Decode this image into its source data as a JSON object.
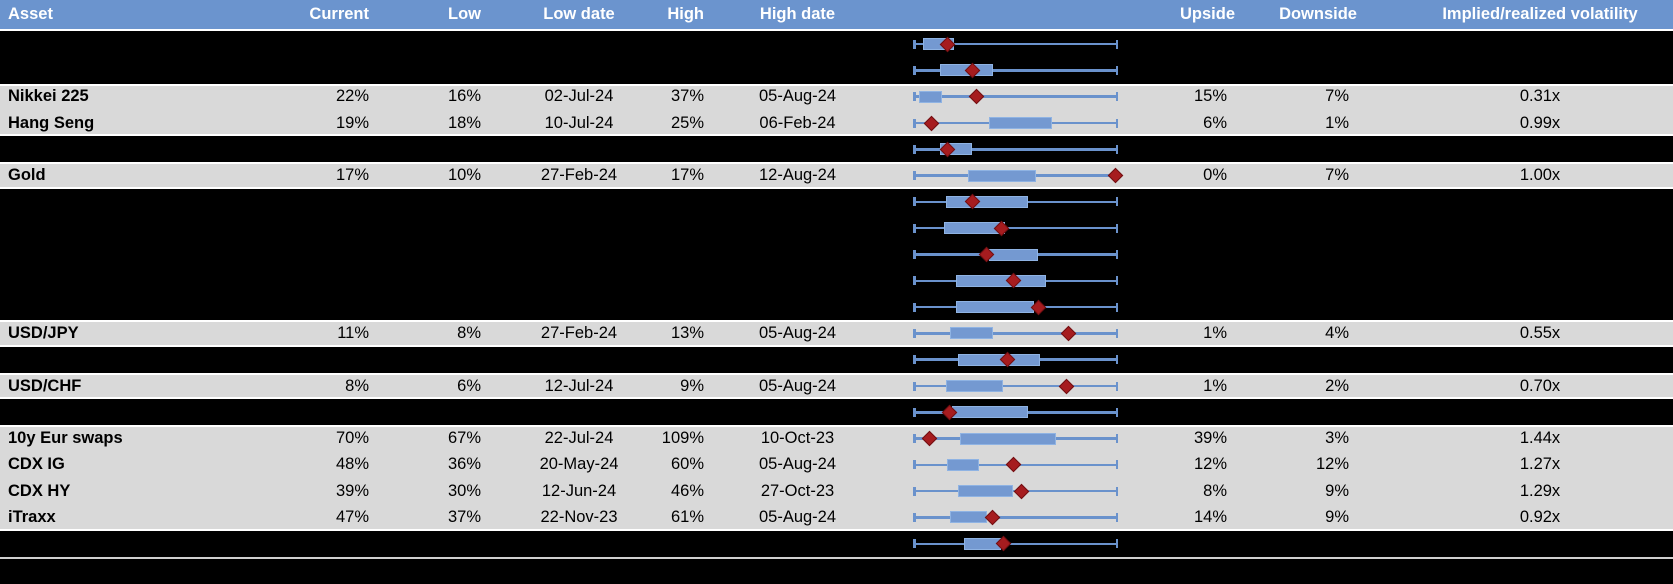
{
  "header": {
    "columns": [
      {
        "id": "asset",
        "label": "Asset"
      },
      {
        "id": "current",
        "label": "Current"
      },
      {
        "id": "low",
        "label": "Low"
      },
      {
        "id": "low_date",
        "label": "Low date"
      },
      {
        "id": "high",
        "label": "High"
      },
      {
        "id": "high_date",
        "label": "High date"
      },
      {
        "id": "range_chart",
        "label": ""
      },
      {
        "id": "upside",
        "label": "Upside"
      },
      {
        "id": "downside",
        "label": "Downside"
      },
      {
        "id": "implied_realized",
        "label": "Implied/realized volatility"
      }
    ]
  },
  "colors": {
    "header_bg": "#6b94ce",
    "header_text": "#ffffff",
    "row_bg": "#d9d9d9",
    "hidden_row_bg": "#000000",
    "separator": "#ffffff",
    "whisker": "#6a92cc",
    "box_fill": "#7499d1",
    "box_border": "#8fb3e3",
    "marker_fill": "#a61c1f",
    "marker_border": "#700f12",
    "bottom_line": "#cfcfcf",
    "text": "#000000"
  },
  "chart_data": {
    "type": "table",
    "note": "Implied volatility table with in-row box-and-whisker charts. Whiskers span the low-to-high range (fraction 0 to 1); box_left/box_right give the blue box extent and marker the red diamond (current level) as fractions of that range. Rows with hidden=true are blacked-out rows where only the box plot is visible.",
    "rows": [
      {
        "hidden": true,
        "boxplot": {
          "box_left": 0.05,
          "box_right": 0.2,
          "marker": 0.17
        }
      },
      {
        "hidden": true,
        "boxplot": {
          "box_left": 0.13,
          "box_right": 0.39,
          "marker": 0.29
        }
      },
      {
        "hidden": false,
        "asset": "Nikkei 225",
        "current": "22%",
        "low": "16%",
        "low_date": "02-Jul-24",
        "high": "37%",
        "high_date": "05-Aug-24",
        "upside": "15%",
        "downside": "7%",
        "implied_realized": "0.31x",
        "boxplot": {
          "box_left": 0.03,
          "box_right": 0.14,
          "marker": 0.31
        }
      },
      {
        "hidden": false,
        "asset": "Hang Seng",
        "current": "19%",
        "low": "18%",
        "low_date": "10-Jul-24",
        "high": "25%",
        "high_date": "06-Feb-24",
        "upside": "6%",
        "downside": "1%",
        "implied_realized": "0.99x",
        "boxplot": {
          "box_left": 0.37,
          "box_right": 0.68,
          "marker": 0.09
        }
      },
      {
        "hidden": true,
        "boxplot": {
          "box_left": 0.13,
          "box_right": 0.29,
          "marker": 0.17
        }
      },
      {
        "hidden": false,
        "asset": "Gold",
        "current": "17%",
        "low": "10%",
        "low_date": "27-Feb-24",
        "high": "17%",
        "high_date": "12-Aug-24",
        "upside": "0%",
        "downside": "7%",
        "implied_realized": "1.00x",
        "boxplot": {
          "box_left": 0.27,
          "box_right": 0.6,
          "marker": 0.99
        }
      },
      {
        "hidden": true,
        "boxplot": {
          "box_left": 0.16,
          "box_right": 0.56,
          "marker": 0.29
        }
      },
      {
        "hidden": true,
        "boxplot": {
          "box_left": 0.15,
          "box_right": 0.45,
          "marker": 0.43
        }
      },
      {
        "hidden": true,
        "boxplot": {
          "box_left": 0.37,
          "box_right": 0.61,
          "marker": 0.36
        }
      },
      {
        "hidden": true,
        "boxplot": {
          "box_left": 0.21,
          "box_right": 0.65,
          "marker": 0.49
        }
      },
      {
        "hidden": true,
        "boxplot": {
          "box_left": 0.21,
          "box_right": 0.59,
          "marker": 0.61
        }
      },
      {
        "hidden": false,
        "asset": "USD/JPY",
        "current": "11%",
        "low": "8%",
        "low_date": "27-Feb-24",
        "high": "13%",
        "high_date": "05-Aug-24",
        "upside": "1%",
        "downside": "4%",
        "implied_realized": "0.55x",
        "boxplot": {
          "box_left": 0.18,
          "box_right": 0.39,
          "marker": 0.76
        }
      },
      {
        "hidden": true,
        "boxplot": {
          "box_left": 0.22,
          "box_right": 0.62,
          "marker": 0.46
        }
      },
      {
        "hidden": false,
        "asset": "USD/CHF",
        "current": "8%",
        "low": "6%",
        "low_date": "12-Jul-24",
        "high": "9%",
        "high_date": "05-Aug-24",
        "upside": "1%",
        "downside": "2%",
        "implied_realized": "0.70x",
        "boxplot": {
          "box_left": 0.16,
          "box_right": 0.44,
          "marker": 0.75
        }
      },
      {
        "hidden": true,
        "boxplot": {
          "box_left": 0.19,
          "box_right": 0.56,
          "marker": 0.18
        }
      },
      {
        "hidden": false,
        "asset": "10y Eur swaps",
        "current": "70%",
        "low": "67%",
        "low_date": "22-Jul-24",
        "high": "109%",
        "high_date": "10-Oct-23",
        "upside": "39%",
        "downside": "3%",
        "implied_realized": "1.44x",
        "boxplot": {
          "box_left": 0.23,
          "box_right": 0.7,
          "marker": 0.08
        }
      },
      {
        "hidden": false,
        "asset": "CDX IG",
        "current": "48%",
        "low": "36%",
        "low_date": "20-May-24",
        "high": "60%",
        "high_date": "05-Aug-24",
        "upside": "12%",
        "downside": "12%",
        "implied_realized": "1.27x",
        "boxplot": {
          "box_left": 0.165,
          "box_right": 0.32,
          "marker": 0.49
        }
      },
      {
        "hidden": false,
        "asset": "CDX HY",
        "current": "39%",
        "low": "30%",
        "low_date": "12-Jun-24",
        "high": "46%",
        "high_date": "27-Oct-23",
        "upside": "8%",
        "downside": "9%",
        "implied_realized": "1.29x",
        "boxplot": {
          "box_left": 0.22,
          "box_right": 0.49,
          "marker": 0.53
        }
      },
      {
        "hidden": false,
        "asset": "iTraxx",
        "current": "47%",
        "low": "37%",
        "low_date": "22-Nov-23",
        "high": "61%",
        "high_date": "05-Aug-24",
        "upside": "14%",
        "downside": "9%",
        "implied_realized": "0.92x",
        "boxplot": {
          "box_left": 0.18,
          "box_right": 0.36,
          "marker": 0.39
        }
      },
      {
        "hidden": true,
        "boxplot": {
          "box_left": 0.25,
          "box_right": 0.43,
          "marker": 0.44
        }
      }
    ]
  }
}
